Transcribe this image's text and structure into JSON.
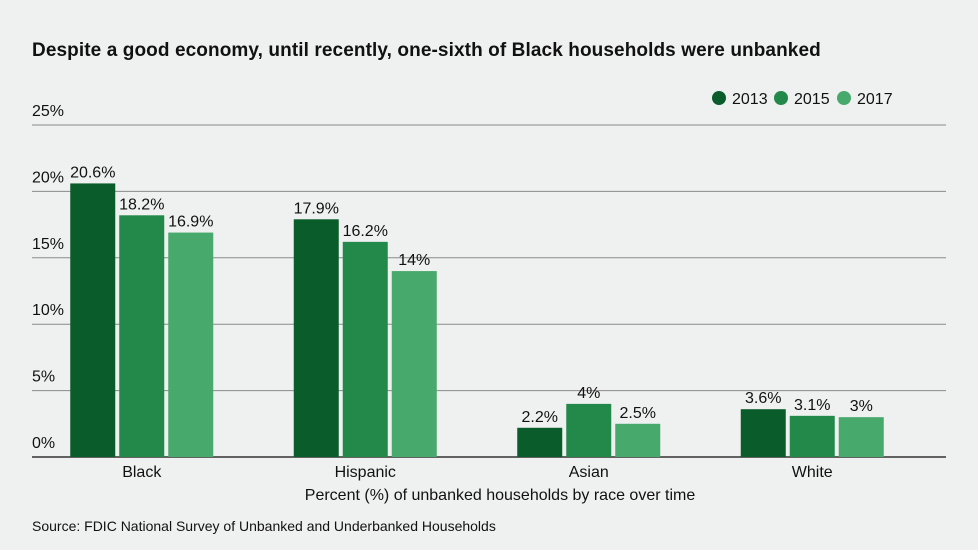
{
  "title": "Despite a good economy, until recently, one-sixth of Black households were unbanked",
  "source": "Source: FDIC National Survey of Unbanked and Underbanked Households",
  "chart_data": {
    "type": "bar",
    "categories": [
      "Black",
      "Hispanic",
      "Asian",
      "White"
    ],
    "series": [
      {
        "name": "2013",
        "color": "#0a5c2b",
        "values": [
          20.6,
          17.9,
          2.2,
          3.6
        ],
        "labels": [
          "20.6%",
          "17.9%",
          "2.2%",
          "3.6%"
        ]
      },
      {
        "name": "2015",
        "color": "#22894a",
        "values": [
          18.2,
          16.2,
          4,
          3.1
        ],
        "labels": [
          "18.2%",
          "16.2%",
          "4%",
          "3.1%"
        ]
      },
      {
        "name": "2017",
        "color": "#47a96b",
        "values": [
          16.9,
          14,
          2.5,
          3
        ],
        "labels": [
          "16.9%",
          "14%",
          "2.5%",
          "3%"
        ]
      }
    ],
    "xlabel": "Percent (%) of unbanked households by race over time",
    "ylabel": "",
    "ylim": [
      0,
      25
    ],
    "yticks": [
      0,
      5,
      10,
      15,
      20,
      25
    ],
    "ytick_labels": [
      "0%",
      "5%",
      "10%",
      "15%",
      "20%",
      "25%"
    ],
    "grid": true,
    "legend_position": "top-right"
  }
}
